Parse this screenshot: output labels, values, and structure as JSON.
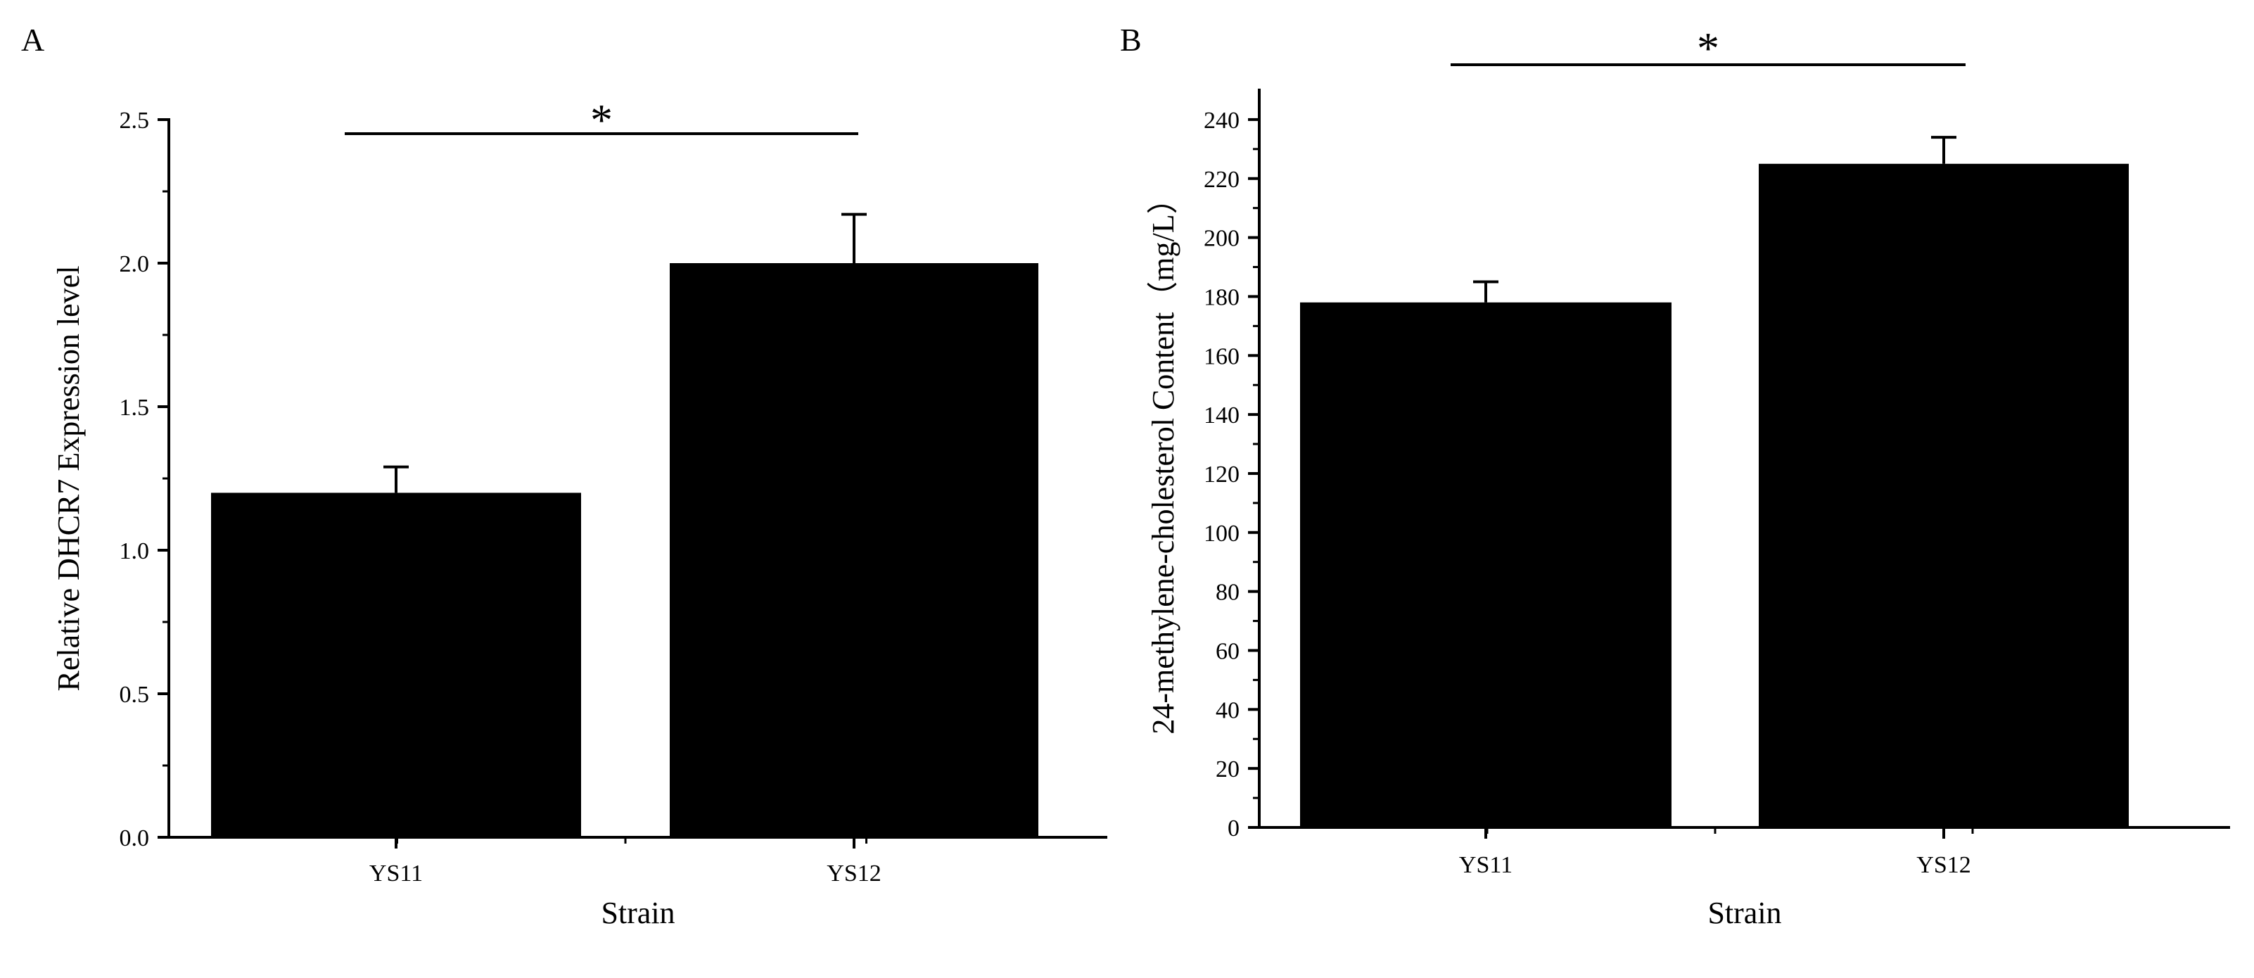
{
  "chart_data": [
    {
      "panel": "A",
      "type": "bar",
      "categories": [
        "YS11",
        "YS12"
      ],
      "values": [
        1.2,
        2.0
      ],
      "errors": [
        0.09,
        0.17
      ],
      "xlabel": "Strain",
      "ylabel": "Relative DHCR7 Expression level",
      "ylim": [
        0,
        2.5
      ],
      "yticks": [
        "0.0",
        "0.5",
        "1.0",
        "1.5",
        "2.0",
        "2.5"
      ],
      "significance": "*",
      "bar_color": "#000000"
    },
    {
      "panel": "B",
      "type": "bar",
      "categories": [
        "YS11",
        "YS12"
      ],
      "values": [
        178,
        225
      ],
      "errors": [
        7,
        9
      ],
      "xlabel": "Strain",
      "ylabel": "24-methylene-cholesterol Content（mg/L）",
      "ylim": [
        0,
        250
      ],
      "yticks": [
        "0",
        "20",
        "40",
        "60",
        "80",
        "100",
        "120",
        "140",
        "160",
        "180",
        "200",
        "220",
        "240"
      ],
      "significance": "*",
      "bar_color": "#000000"
    }
  ]
}
